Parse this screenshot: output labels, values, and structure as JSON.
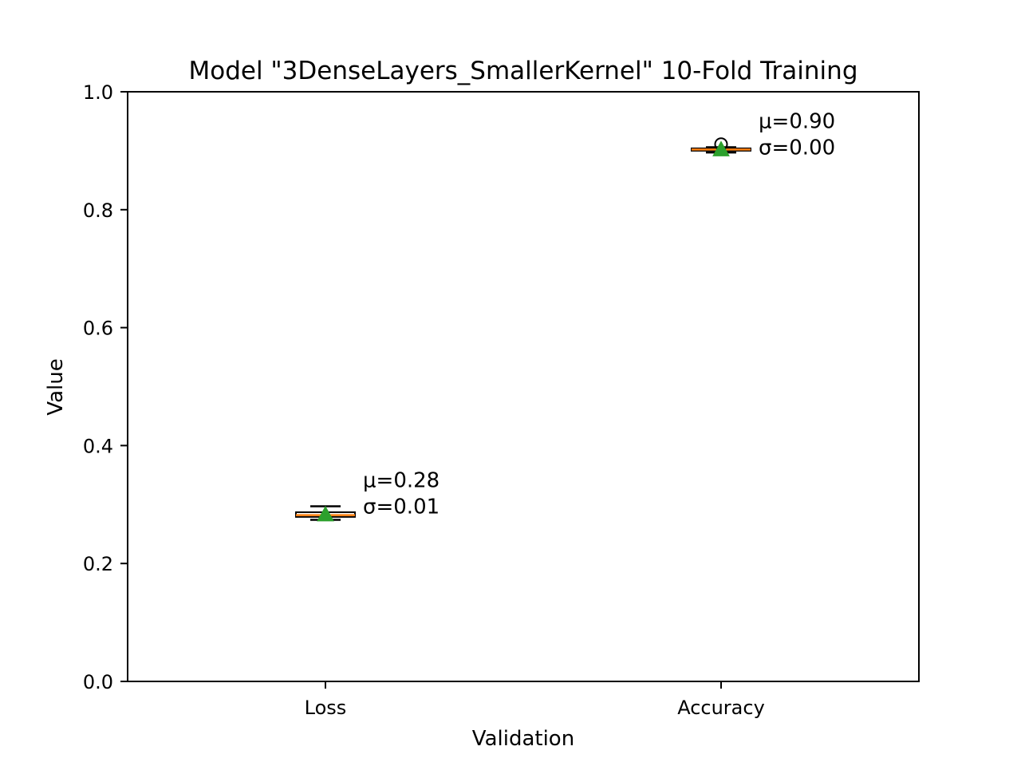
{
  "chart_data": {
    "type": "boxplot",
    "title": "Model \"3DenseLayers_SmallerKernel\" 10-Fold Training",
    "xlabel": "Validation",
    "ylabel": "Value",
    "ylim": [
      0.0,
      1.0
    ],
    "yticks": [
      0.0,
      0.2,
      0.4,
      0.6,
      0.8,
      1.0
    ],
    "ytick_labels": [
      "0.0",
      "0.2",
      "0.4",
      "0.6",
      "0.8",
      "1.0"
    ],
    "categories": [
      "Loss",
      "Accuracy"
    ],
    "grid": false,
    "legend": "none",
    "boxes": [
      {
        "category": "Loss",
        "whisker_low": 0.274,
        "q1": 0.279,
        "median": 0.282,
        "q3": 0.287,
        "whisker_high": 0.297,
        "mean": 0.283,
        "outliers": [],
        "annotation": [
          "μ=0.28",
          "σ=0.01"
        ]
      },
      {
        "category": "Accuracy",
        "whisker_low": 0.897,
        "q1": 0.9,
        "median": 0.902,
        "q3": 0.904,
        "whisker_high": 0.906,
        "mean": 0.902,
        "outliers": [
          0.911
        ],
        "annotation": [
          "μ=0.90",
          "σ=0.00"
        ]
      }
    ],
    "colors": {
      "median": "#ff7f0e",
      "mean_marker": "#2ca02c",
      "box_edge": "#000000"
    }
  }
}
